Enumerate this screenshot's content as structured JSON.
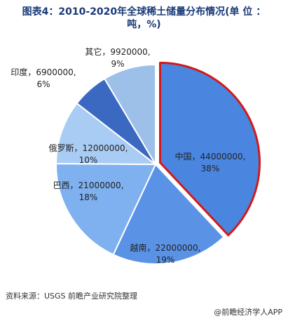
{
  "title": {
    "line1": "图表4：2010-2020年全球稀土储量分布情况(单 位 ：",
    "line2": "吨，%)"
  },
  "chart_data": {
    "type": "pie",
    "slices": [
      {
        "label": "中国",
        "value": 44000000,
        "value_text": "44000000,",
        "percent_text": "38%",
        "color": "#4a86e0",
        "highlight": true
      },
      {
        "label": "越南",
        "value": 22000000,
        "value_text": "22000000,",
        "percent_text": "19%",
        "color": "#5a93e6"
      },
      {
        "label": "巴西",
        "value": 21000000,
        "value_text": "21000000,",
        "percent_text": "18%",
        "color": "#7fb0ef"
      },
      {
        "label": "俄罗斯",
        "value": 12000000,
        "value_text": "12000000,",
        "percent_text": "10%",
        "color": "#a9ccf4"
      },
      {
        "label": "印度",
        "value": 6900000,
        "value_text": "6900000,",
        "percent_text": "6%",
        "color": "#3b69c2"
      },
      {
        "label": "其它",
        "value": 9920000,
        "value_text": "9920000,",
        "percent_text": "9%",
        "color": "#9dc0e8"
      }
    ],
    "colors": {
      "highlight_border": "#d11a1a",
      "separator": "#ffffff"
    }
  },
  "footer": {
    "source": "资料来源：USGS 前瞻产业研究院整理",
    "credit": "@前瞻经济学人APP"
  }
}
